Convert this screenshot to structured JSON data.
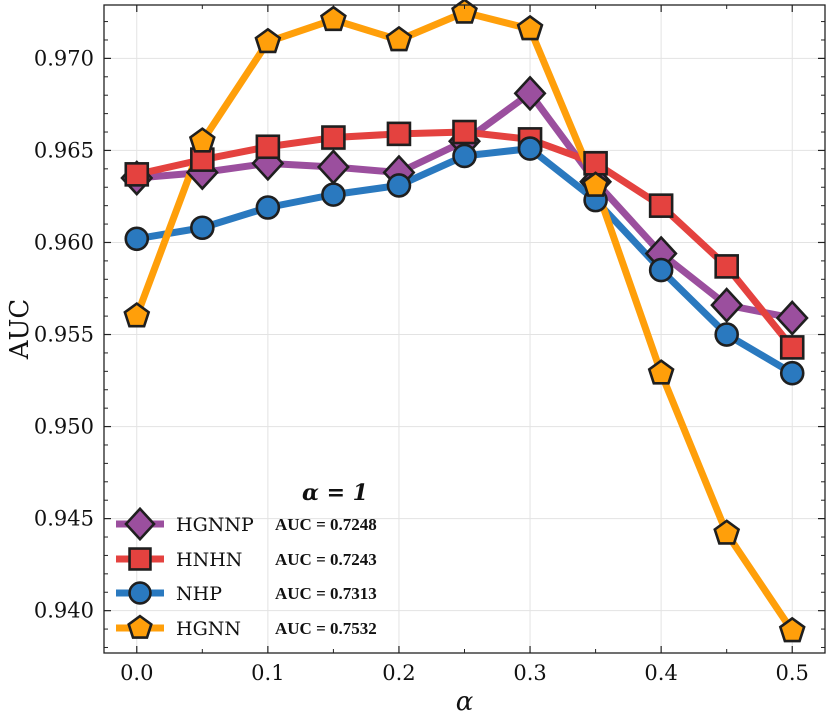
{
  "chart_data": {
    "type": "line",
    "title": "",
    "xlabel": "α",
    "ylabel": "AUC",
    "xlim": [
      -0.025,
      0.525
    ],
    "ylim": [
      0.9377,
      0.9729
    ],
    "xticks": [
      0.0,
      0.1,
      0.2,
      0.3,
      0.4,
      0.5
    ],
    "xtick_labels": [
      "0.0",
      "0.1",
      "0.2",
      "0.3",
      "0.4",
      "0.5"
    ],
    "yticks": [
      0.94,
      0.945,
      0.95,
      0.955,
      0.96,
      0.965,
      0.97
    ],
    "ytick_labels": [
      "0.940",
      "0.945",
      "0.950",
      "0.955",
      "0.960",
      "0.965",
      "0.970"
    ],
    "grid": true,
    "legend_position": "bottom-left",
    "annotation": "α = 1",
    "x": [
      0.0,
      0.05,
      0.1,
      0.15,
      0.2,
      0.25,
      0.3,
      0.35,
      0.4,
      0.45,
      0.5
    ],
    "series": [
      {
        "name": "HGNNP",
        "auc_label": "AUC = 0.7248",
        "color": "#9b4f9e",
        "marker": "diamond",
        "values": [
          0.9635,
          0.9638,
          0.9643,
          0.9641,
          0.9638,
          0.9655,
          0.9681,
          0.9633,
          0.9594,
          0.9566,
          0.9559
        ]
      },
      {
        "name": "HNHN",
        "auc_label": "AUC = 0.7243",
        "color": "#e4423f",
        "marker": "square",
        "values": [
          0.9637,
          0.9645,
          0.9652,
          0.9657,
          0.9659,
          0.966,
          0.9656,
          0.9643,
          0.962,
          0.9587,
          0.9543
        ]
      },
      {
        "name": "NHP",
        "auc_label": "AUC = 0.7313",
        "color": "#2a79bf",
        "marker": "circle",
        "values": [
          0.9602,
          0.9608,
          0.9619,
          0.9626,
          0.9631,
          0.9647,
          0.9651,
          0.9623,
          0.9585,
          0.955,
          0.9529
        ]
      },
      {
        "name": "HGNN",
        "auc_label": "AUC = 0.7532",
        "color": "#ff9f0a",
        "marker": "pentagon",
        "values": [
          0.956,
          0.9655,
          0.9709,
          0.9721,
          0.971,
          0.9725,
          0.9716,
          0.9631,
          0.9529,
          0.9442,
          0.9389
        ]
      }
    ]
  }
}
